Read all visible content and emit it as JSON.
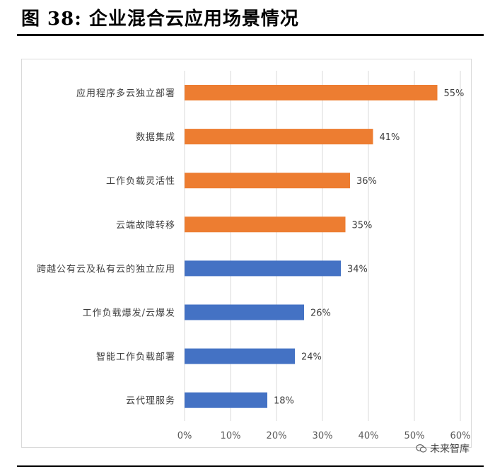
{
  "figure_title": "图  38:  企业混合云应用场景情况",
  "watermark": "未来智库",
  "colors": {
    "orange": "#ED7D31",
    "blue": "#4472C4",
    "grid": "#d9d9d9",
    "axis_text": "#595959"
  },
  "chart_data": {
    "type": "bar",
    "orientation": "horizontal",
    "categories": [
      "应用程序多云独立部署",
      "数据集成",
      "工作负载灵活性",
      "云端故障转移",
      "跨越公有云及私有云的独立应用",
      "工作负载爆发/云爆发",
      "智能工作负载部署",
      "云代理服务"
    ],
    "values": [
      55,
      41,
      36,
      35,
      34,
      26,
      24,
      18
    ],
    "data_labels": [
      "55%",
      "41%",
      "36%",
      "35%",
      "34%",
      "26%",
      "24%",
      "18%"
    ],
    "bar_colors": [
      "orange",
      "orange",
      "orange",
      "orange",
      "blue",
      "blue",
      "blue",
      "blue"
    ],
    "xlim": [
      0,
      60
    ],
    "xticks": [
      0,
      10,
      20,
      30,
      40,
      50,
      60
    ],
    "xtick_labels": [
      "0%",
      "10%",
      "20%",
      "30%",
      "40%",
      "50%",
      "60%"
    ],
    "grid": "vertical",
    "legend": "none"
  }
}
